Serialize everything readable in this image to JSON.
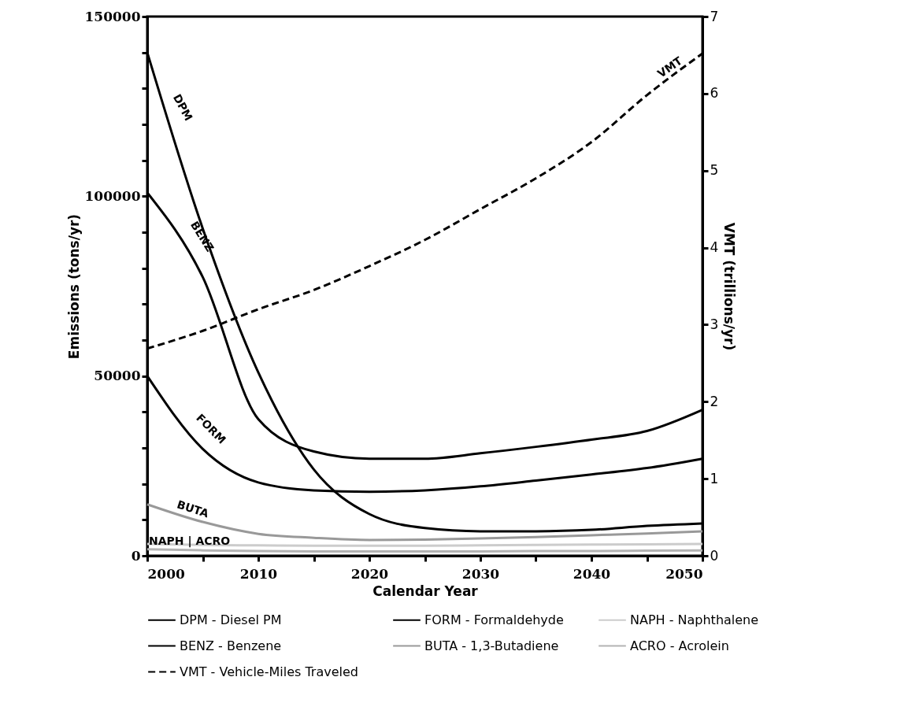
{
  "chart_data": {
    "type": "line",
    "xlabel": "Calendar Year",
    "ylabel": "Emissions (tons/yr)",
    "y2label": "VMT (trillions/yr)",
    "x": [
      2000,
      2005,
      2010,
      2015,
      2020,
      2025,
      2030,
      2035,
      2040,
      2045,
      2050
    ],
    "xlim": [
      2000,
      2050
    ],
    "xticks": [
      2000,
      {
        "value": 2005,
        "label": null
      },
      2010,
      {
        "value": 2015,
        "label": null
      },
      2020,
      {
        "value": 2025,
        "label": null
      },
      2030,
      {
        "value": 2035,
        "label": null
      },
      2040,
      {
        "value": 2045,
        "label": null
      },
      2050
    ],
    "ylim": [
      0,
      150000
    ],
    "yticks": [
      0,
      {
        "value": 10000,
        "label": null
      },
      {
        "value": 20000,
        "label": null
      },
      {
        "value": 30000,
        "label": null
      },
      {
        "value": 40000,
        "label": null
      },
      50000,
      {
        "value": 60000,
        "label": null
      },
      {
        "value": 70000,
        "label": null
      },
      {
        "value": 80000,
        "label": null
      },
      {
        "value": 90000,
        "label": null
      },
      100000,
      {
        "value": 110000,
        "label": null
      },
      {
        "value": 120000,
        "label": null
      },
      {
        "value": 130000,
        "label": null
      },
      {
        "value": 140000,
        "label": null
      },
      150000
    ],
    "y2lim": [
      0,
      7
    ],
    "y2ticks": [
      0,
      1,
      2,
      3,
      4,
      5,
      6,
      7
    ],
    "legend": "bottom",
    "grid": false,
    "marker": "none",
    "series": [
      {
        "name": "DPM - Diesel PM",
        "color": "#000000",
        "line_style": "solid",
        "values": [
          140000,
          91000,
          51000,
          24000,
          11600,
          7700,
          6800,
          6800,
          7200,
          8300,
          9000
        ]
      },
      {
        "name": "FORM - Formaldehyde",
        "color": "#000000",
        "line_style": "solid",
        "values": [
          50000,
          29700,
          20400,
          18200,
          17800,
          18200,
          19300,
          20900,
          22600,
          24400,
          27000
        ]
      },
      {
        "name": "NAPH - Naphthalene",
        "color": "#cccccc",
        "line_style": "solid",
        "values": [
          3300,
          3000,
          2900,
          2800,
          2800,
          2800,
          2900,
          3000,
          3100,
          3200,
          3300
        ]
      },
      {
        "name": "BENZ - Benzene",
        "color": "#000000",
        "line_style": "solid",
        "values": [
          101000,
          77500,
          38000,
          29000,
          27000,
          27000,
          28500,
          30300,
          32300,
          34700,
          40600
        ]
      },
      {
        "name": "BUTA - 1,3-Butadiene",
        "color": "#999999",
        "line_style": "solid",
        "values": [
          14300,
          9400,
          6100,
          5000,
          4400,
          4500,
          4800,
          5200,
          5700,
          6200,
          6800
        ]
      },
      {
        "name": "ACRO - Acrolein",
        "color": "#b3b3b3",
        "line_style": "solid",
        "values": [
          1800,
          1500,
          1300,
          1200,
          1200,
          1200,
          1200,
          1300,
          1300,
          1400,
          1500
        ]
      },
      {
        "name": "VMT - Vehicle-Miles Traveled",
        "color": "#000000",
        "line_style": "dashed",
        "axis": "y2",
        "values": [
          2.69,
          2.92,
          3.2,
          3.45,
          3.76,
          4.1,
          4.5,
          4.9,
          5.37,
          5.98,
          6.52
        ]
      }
    ],
    "annotations": [
      "DPM",
      "BENZ",
      "FORM",
      "BUTA",
      "NAPH | ACRO",
      "VMT"
    ]
  }
}
